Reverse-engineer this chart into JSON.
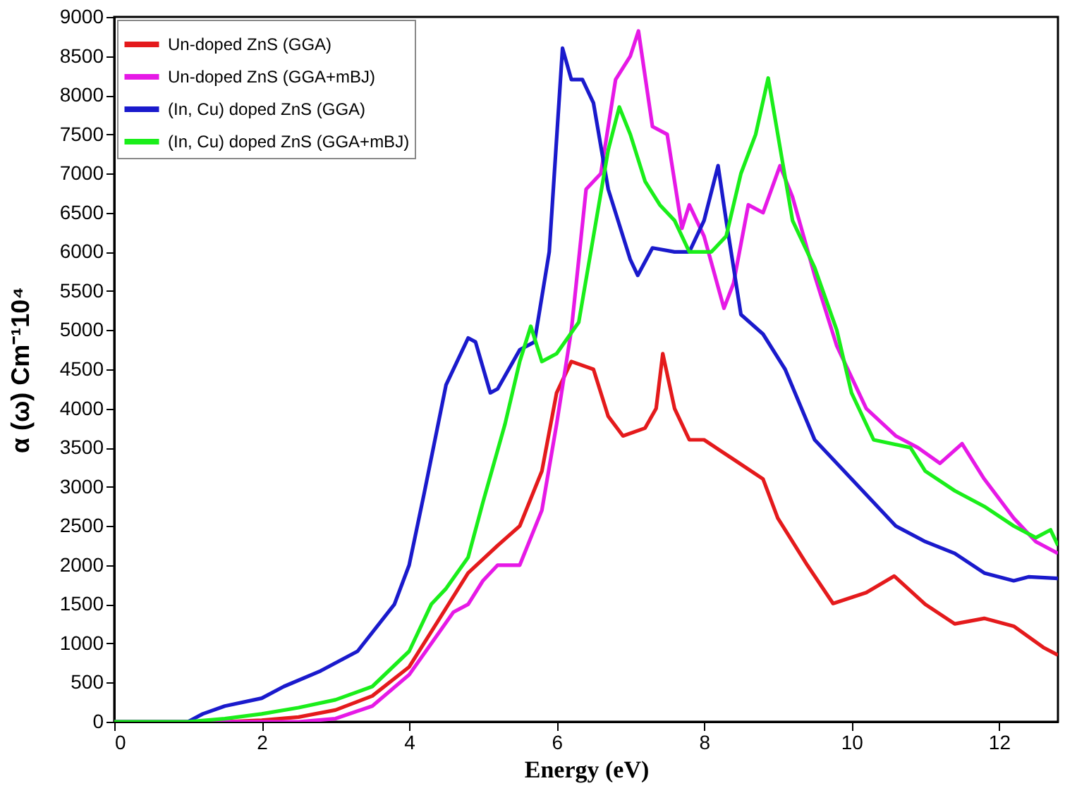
{
  "chart_data": {
    "type": "line",
    "xlabel": "Energy (eV)",
    "ylabel": "α (ω) Cm⁻¹10⁴",
    "xlim": [
      0,
      12.8
    ],
    "ylim": [
      0,
      9000
    ],
    "xticks": [
      0,
      2,
      4,
      6,
      8,
      10,
      12
    ],
    "yticks": [
      0,
      500,
      1000,
      1500,
      2000,
      2500,
      3000,
      3500,
      4000,
      4500,
      5000,
      5500,
      6000,
      6500,
      7000,
      7500,
      8000,
      8500,
      9000
    ],
    "grid": false,
    "legend": "top left",
    "marker": "none",
    "line_style": "solid",
    "series": [
      {
        "name": "Un-doped ZnS (GGA)",
        "color": "#e41a1c",
        "x": [
          0,
          1.5,
          2,
          2.5,
          3,
          3.5,
          4,
          4.4,
          4.8,
          5.2,
          5.5,
          5.8,
          6.0,
          6.2,
          6.5,
          6.7,
          6.9,
          7.2,
          7.35,
          7.44,
          7.6,
          7.8,
          8.0,
          8.4,
          8.8,
          9.0,
          9.4,
          9.75,
          10.2,
          10.58,
          11.0,
          11.4,
          11.8,
          12.2,
          12.6,
          12.8
        ],
        "values": [
          0,
          0,
          20,
          60,
          150,
          330,
          700,
          1300,
          1900,
          2250,
          2500,
          3200,
          4200,
          4600,
          4500,
          3900,
          3650,
          3750,
          4000,
          4700,
          4000,
          3600,
          3600,
          3350,
          3100,
          2600,
          2000,
          1510,
          1650,
          1860,
          1500,
          1250,
          1320,
          1220,
          950,
          850
        ]
      },
      {
        "name": "Un-doped ZnS (GGA+mBJ)",
        "color": "#e619e6",
        "x": [
          0,
          2.5,
          3,
          3.5,
          4,
          4.3,
          4.6,
          4.8,
          5.0,
          5.2,
          5.5,
          5.8,
          6.0,
          6.2,
          6.4,
          6.6,
          6.8,
          7.0,
          7.11,
          7.3,
          7.5,
          7.7,
          7.8,
          8.0,
          8.27,
          8.4,
          8.6,
          8.8,
          9.03,
          9.2,
          9.5,
          9.8,
          10.2,
          10.6,
          10.9,
          11.2,
          11.5,
          11.8,
          12.2,
          12.5,
          12.8
        ],
        "values": [
          0,
          0,
          40,
          200,
          600,
          1000,
          1400,
          1500,
          1800,
          2000,
          2000,
          2700,
          3800,
          5000,
          6800,
          7000,
          8200,
          8500,
          8820,
          7600,
          7500,
          6300,
          6600,
          6200,
          5280,
          5600,
          6600,
          6500,
          7100,
          6700,
          5700,
          4800,
          4000,
          3650,
          3500,
          3300,
          3550,
          3100,
          2600,
          2300,
          2150
        ]
      },
      {
        "name": "(In, Cu) doped ZnS (GGA)",
        "color": "#1a1acc",
        "x": [
          0,
          1.0,
          1.2,
          1.5,
          2,
          2.3,
          2.8,
          3.3,
          3.8,
          4.0,
          4.2,
          4.5,
          4.8,
          4.9,
          5.1,
          5.2,
          5.5,
          5.7,
          5.9,
          6.08,
          6.2,
          6.35,
          6.5,
          6.7,
          7.0,
          7.1,
          7.3,
          7.6,
          7.8,
          8.0,
          8.19,
          8.3,
          8.5,
          8.8,
          9.1,
          9.5,
          9.8,
          10.2,
          10.6,
          11.0,
          11.4,
          11.8,
          12.2,
          12.4,
          12.8
        ],
        "values": [
          0,
          0,
          100,
          200,
          300,
          450,
          650,
          900,
          1500,
          2000,
          2900,
          4300,
          4900,
          4850,
          4200,
          4250,
          4750,
          4850,
          6000,
          8600,
          8200,
          8200,
          7900,
          6800,
          5900,
          5700,
          6050,
          6000,
          6000,
          6400,
          7100,
          6400,
          5200,
          4950,
          4500,
          3600,
          3300,
          2900,
          2500,
          2300,
          2150,
          1900,
          1800,
          1850,
          1830
        ]
      },
      {
        "name": "(In, Cu) doped ZnS (GGA+mBJ)",
        "color": "#1aee1a",
        "x": [
          0,
          1.0,
          1.5,
          2,
          2.5,
          3,
          3.5,
          4,
          4.3,
          4.5,
          4.8,
          5.0,
          5.3,
          5.5,
          5.65,
          5.8,
          6.0,
          6.3,
          6.5,
          6.7,
          6.85,
          7.0,
          7.2,
          7.4,
          7.6,
          7.8,
          8.1,
          8.3,
          8.5,
          8.7,
          8.87,
          9.0,
          9.2,
          9.5,
          9.8,
          10.0,
          10.3,
          10.8,
          11.0,
          11.4,
          11.8,
          12.2,
          12.5,
          12.7,
          12.8
        ],
        "values": [
          0,
          0,
          40,
          100,
          180,
          280,
          450,
          900,
          1500,
          1700,
          2100,
          2800,
          3800,
          4600,
          5050,
          4600,
          4700,
          5100,
          6200,
          7300,
          7850,
          7500,
          6900,
          6600,
          6400,
          6000,
          6000,
          6200,
          7000,
          7500,
          8220,
          7500,
          6400,
          5800,
          5000,
          4200,
          3600,
          3500,
          3200,
          2950,
          2750,
          2500,
          2350,
          2450,
          2250
        ]
      }
    ]
  }
}
